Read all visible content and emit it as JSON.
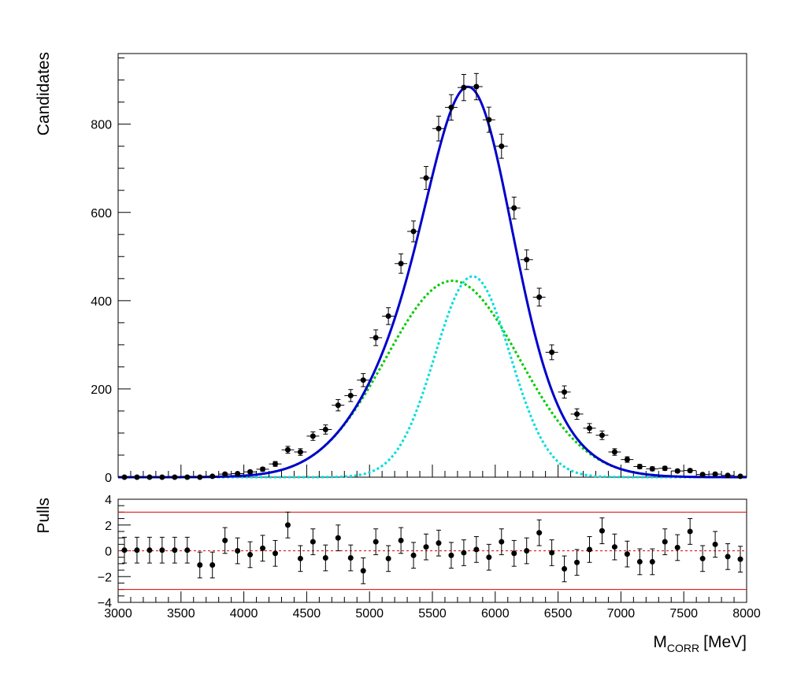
{
  "chart_data": [
    {
      "type": "scatter",
      "panel": "main",
      "ylabel": "Candidates",
      "xlim": [
        3000,
        8000
      ],
      "ylim": [
        0,
        960
      ],
      "yticks": [
        0,
        200,
        400,
        600,
        800
      ],
      "yticklabels": [
        "0",
        "200",
        "400",
        "600",
        "800"
      ],
      "grid": false,
      "colors": {
        "data": "#000000",
        "total": "#0000cc",
        "component1": "#00cc00",
        "component2": "#00dddd"
      },
      "series": [
        {
          "kind": "data-points",
          "x": [
            3050,
            3150,
            3250,
            3350,
            3450,
            3550,
            3650,
            3750,
            3850,
            3950,
            4050,
            4150,
            4250,
            4350,
            4450,
            4550,
            4650,
            4750,
            4850,
            4950,
            5050,
            5150,
            5250,
            5350,
            5450,
            5550,
            5650,
            5750,
            5850,
            5950,
            6050,
            6150,
            6250,
            6350,
            6450,
            6550,
            6650,
            6750,
            6850,
            6950,
            7050,
            7150,
            7250,
            7350,
            7450,
            7550,
            7650,
            7750,
            7850,
            7950
          ],
          "y": [
            0,
            0,
            0,
            0,
            0,
            0,
            0,
            2,
            7,
            8,
            12,
            18,
            30,
            62,
            57,
            93,
            108,
            163,
            185,
            220,
            316,
            365,
            484,
            557,
            678,
            790,
            838,
            883,
            885,
            810,
            750,
            610,
            493,
            408,
            283,
            193,
            143,
            111,
            95,
            57,
            40,
            24,
            19,
            20,
            14,
            15,
            6,
            7,
            4,
            2
          ],
          "yerr": [
            1,
            1,
            1,
            1,
            1,
            1,
            1,
            1.5,
            2.7,
            2.9,
            3.5,
            4.3,
            5.5,
            7.9,
            7.6,
            9.6,
            10.4,
            12.8,
            13.6,
            14.8,
            17.8,
            19.1,
            22,
            23.6,
            26,
            28.1,
            28.9,
            29.7,
            29.8,
            28.5,
            27.4,
            24.7,
            22.2,
            20.2,
            16.8,
            13.9,
            12,
            10.5,
            9.7,
            7.5,
            6.3,
            4.9,
            4.4,
            4.5,
            3.7,
            3.9,
            2.4,
            2.6,
            2,
            1.4
          ],
          "xerr": 50
        },
        {
          "kind": "total-fit",
          "curve": [
            {
              "amp": 445,
              "mean": 5660,
              "sigma": 530
            },
            {
              "amp": 455,
              "mean": 5820,
              "sigma": 300
            }
          ]
        },
        {
          "kind": "component-1",
          "curve": [
            {
              "amp": 445,
              "mean": 5660,
              "sigma": 530
            }
          ]
        },
        {
          "kind": "component-2",
          "curve": [
            {
              "amp": 455,
              "mean": 5820,
              "sigma": 300
            }
          ]
        }
      ]
    },
    {
      "type": "scatter",
      "panel": "pulls",
      "ylabel": "Pulls",
      "xlabel_main": "M",
      "xlabel_sub": "CORR",
      "xlabel_unit": "[MeV]",
      "xlim": [
        3000,
        8000
      ],
      "ylim": [
        -4,
        4
      ],
      "xticks": [
        3000,
        3500,
        4000,
        4500,
        5000,
        5500,
        6000,
        6500,
        7000,
        7500,
        8000
      ],
      "xticklabels": [
        "3000",
        "3500",
        "4000",
        "4500",
        "5000",
        "5500",
        "6000",
        "6500",
        "7000",
        "7500",
        "8000"
      ],
      "yticks": [
        -4,
        -2,
        0,
        2,
        4
      ],
      "yticklabels": [
        "−4",
        "−2",
        "0",
        "2",
        "4"
      ],
      "reference_lines": [
        3,
        -3
      ],
      "zero_line": 0,
      "colors": {
        "points": "#000000",
        "reference": "#dd0000"
      },
      "x": [
        3050,
        3150,
        3250,
        3350,
        3450,
        3550,
        3650,
        3750,
        3850,
        3950,
        4050,
        4150,
        4250,
        4350,
        4450,
        4550,
        4650,
        4750,
        4850,
        4950,
        5050,
        5150,
        5250,
        5350,
        5450,
        5550,
        5650,
        5750,
        5850,
        5950,
        6050,
        6150,
        6250,
        6350,
        6450,
        6550,
        6650,
        6750,
        6850,
        6950,
        7050,
        7150,
        7250,
        7350,
        7450,
        7550,
        7650,
        7750,
        7850,
        7950
      ],
      "y": [
        0.05,
        0.05,
        0.05,
        0.05,
        0.05,
        0.05,
        -1.1,
        -1.1,
        0.8,
        0,
        -0.3,
        0.2,
        -0.2,
        2.0,
        -0.6,
        0.7,
        -0.55,
        1.0,
        -0.55,
        -1.55,
        0.7,
        -0.6,
        0.8,
        -0.35,
        0.3,
        0.6,
        -0.35,
        -0.15,
        0.1,
        -0.5,
        0.7,
        -0.2,
        0,
        1.4,
        -0.15,
        -1.4,
        -0.9,
        0.1,
        1.55,
        0.3,
        -0.25,
        -0.85,
        -0.85,
        0.7,
        0.25,
        1.5,
        -0.6,
        0.5,
        -0.45,
        -0.65
      ],
      "yerr": 1
    }
  ]
}
